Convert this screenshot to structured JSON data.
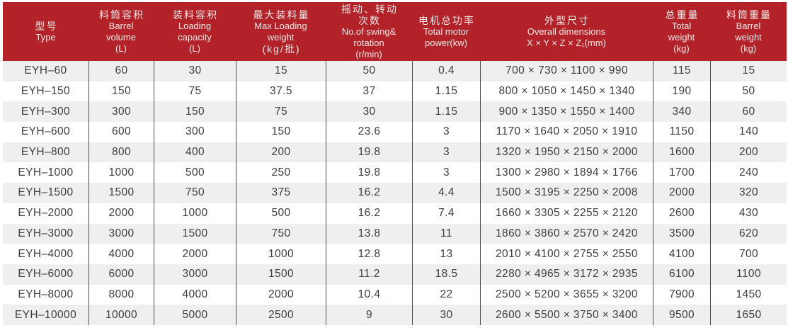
{
  "table": {
    "title": "EYH series specification table",
    "colors": {
      "header_bg": "#b22228",
      "header_text": "#f6e9e9",
      "row_alt_bg": "#efefef",
      "row_bg": "#ffffff",
      "divider": "#4b4b4b",
      "body_text": "#3d3d3d"
    },
    "columns": [
      {
        "id": "type",
        "lines": [
          "型号",
          "Type"
        ]
      },
      {
        "id": "barrel-volume",
        "lines": [
          "料筒容积",
          "Barrel",
          "volume",
          "(L)"
        ]
      },
      {
        "id": "loading-capacity",
        "lines": [
          "装料容积",
          "Loading",
          "capacity",
          "(L)"
        ]
      },
      {
        "id": "max-loading-weight",
        "lines": [
          "最大装料量",
          "Max Loading",
          "weight",
          "(kg/批)"
        ]
      },
      {
        "id": "swing-rotation",
        "lines": [
          "摇动、转动",
          "次数",
          "No.of swing&",
          "rotation",
          "(r/min)"
        ]
      },
      {
        "id": "motor-power",
        "lines": [
          "电机总功率",
          "Total motor",
          "power(kw)"
        ]
      },
      {
        "id": "overall-dimensions",
        "lines": [
          "外型尺寸",
          "Overall dimensions",
          "X × Y × Z × Z₁(mm)"
        ]
      },
      {
        "id": "total-weight",
        "lines": [
          "总重量",
          "Total",
          "weight",
          "(kg)"
        ]
      },
      {
        "id": "barrel-weight",
        "lines": [
          "料筒重量",
          "Barrel",
          "weight",
          "(kg)"
        ]
      }
    ],
    "rows": [
      [
        "EYH–60",
        "60",
        "30",
        "15",
        "50",
        "0.4",
        "700 × 730 × 1100 × 990",
        "115",
        "15"
      ],
      [
        "EYH–150",
        "150",
        "75",
        "37.5",
        "37",
        "1.15",
        "800 × 1050 × 1450 × 1340",
        "190",
        "50"
      ],
      [
        "EYH–300",
        "300",
        "150",
        "75",
        "30",
        "1.15",
        "900 × 1350 × 1550 × 1400",
        "340",
        "60"
      ],
      [
        "EYH–600",
        "600",
        "300",
        "150",
        "23.6",
        "3",
        "1170 × 1640 × 2050 × 1910",
        "1150",
        "140"
      ],
      [
        "EYH–800",
        "800",
        "400",
        "200",
        "19.8",
        "3",
        "1320 × 1950 × 2150 × 2000",
        "1600",
        "200"
      ],
      [
        "EYH–1000",
        "1000",
        "500",
        "250",
        "19.8",
        "3",
        "1300 × 2980 × 1894 × 1766",
        "1700",
        "240"
      ],
      [
        "EYH–1500",
        "1500",
        "750",
        "375",
        "16.2",
        "4.4",
        "1500 × 3195 × 2250 × 2008",
        "2000",
        "320"
      ],
      [
        "EYH–2000",
        "2000",
        "1000",
        "500",
        "16.2",
        "7.4",
        "1660 × 3305 × 2255 × 2120",
        "2600",
        "430"
      ],
      [
        "EYH–3000",
        "3000",
        "1500",
        "750",
        "13.8",
        "11",
        "1860 × 3860 × 2570 × 2420",
        "3500",
        "620"
      ],
      [
        "EYH–4000",
        "4000",
        "2000",
        "1000",
        "12.8",
        "13",
        "2010 × 4100 × 2755 × 2550",
        "4100",
        "700"
      ],
      [
        "EYH–6000",
        "6000",
        "3000",
        "1500",
        "11.2",
        "18.5",
        "2280 × 4965 × 3172 × 2935",
        "6100",
        "1100"
      ],
      [
        "EYH–8000",
        "8000",
        "4000",
        "2000",
        "10.4",
        "22",
        "2500 × 5200 × 3655 × 3200",
        "7900",
        "1450"
      ],
      [
        "EYH–10000",
        "10000",
        "5000",
        "2500",
        "9",
        "30",
        "2600 × 5500 × 3750 × 3400",
        "9500",
        "1650"
      ]
    ]
  }
}
